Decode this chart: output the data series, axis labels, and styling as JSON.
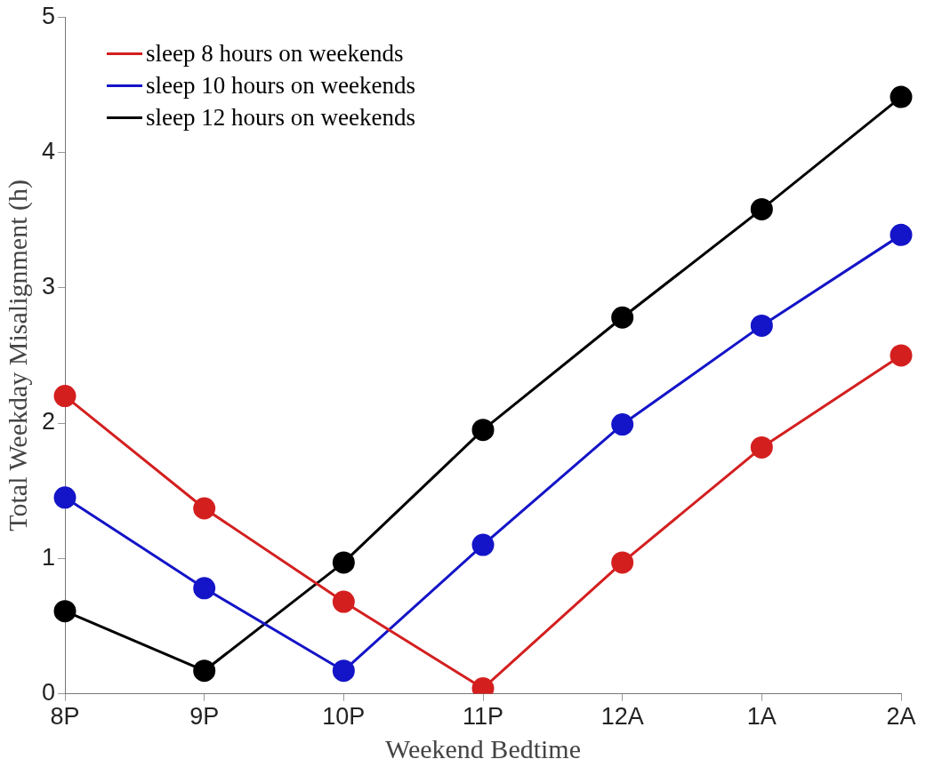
{
  "chart_data": {
    "type": "line",
    "xlabel": "Weekend Bedtime",
    "ylabel": "Total Weekday Misalignment (h)",
    "categories": [
      "8P",
      "9P",
      "10P",
      "11P",
      "12A",
      "1A",
      "2A"
    ],
    "series": [
      {
        "name": "sleep 8 hours on weekends",
        "color": "#d41f1f",
        "values": [
          2.2,
          1.37,
          0.68,
          0.04,
          0.97,
          1.82,
          2.5
        ]
      },
      {
        "name": "sleep 10 hours on weekends",
        "color": "#1414c8",
        "values": [
          1.45,
          0.78,
          0.17,
          1.1,
          1.99,
          2.72,
          3.39
        ]
      },
      {
        "name": "sleep 12 hours on weekends",
        "color": "#000000",
        "values": [
          0.61,
          0.17,
          0.97,
          1.95,
          2.78,
          3.58,
          4.41
        ]
      }
    ],
    "ylim": [
      0,
      5
    ],
    "yticks": [
      0,
      1,
      2,
      3,
      4,
      5
    ],
    "legend": "top left",
    "marker": "circle"
  }
}
